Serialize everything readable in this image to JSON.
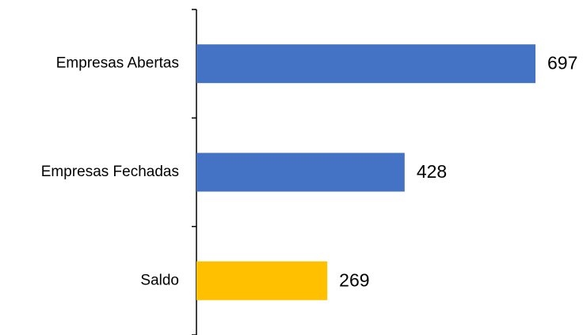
{
  "chart_data": {
    "type": "bar",
    "orientation": "horizontal",
    "categories": [
      "Empresas Abertas",
      "Empresas Fechadas",
      "Saldo"
    ],
    "values": [
      697,
      428,
      269
    ],
    "colors": [
      "#4472c4",
      "#4472c4",
      "#ffc000"
    ]
  }
}
